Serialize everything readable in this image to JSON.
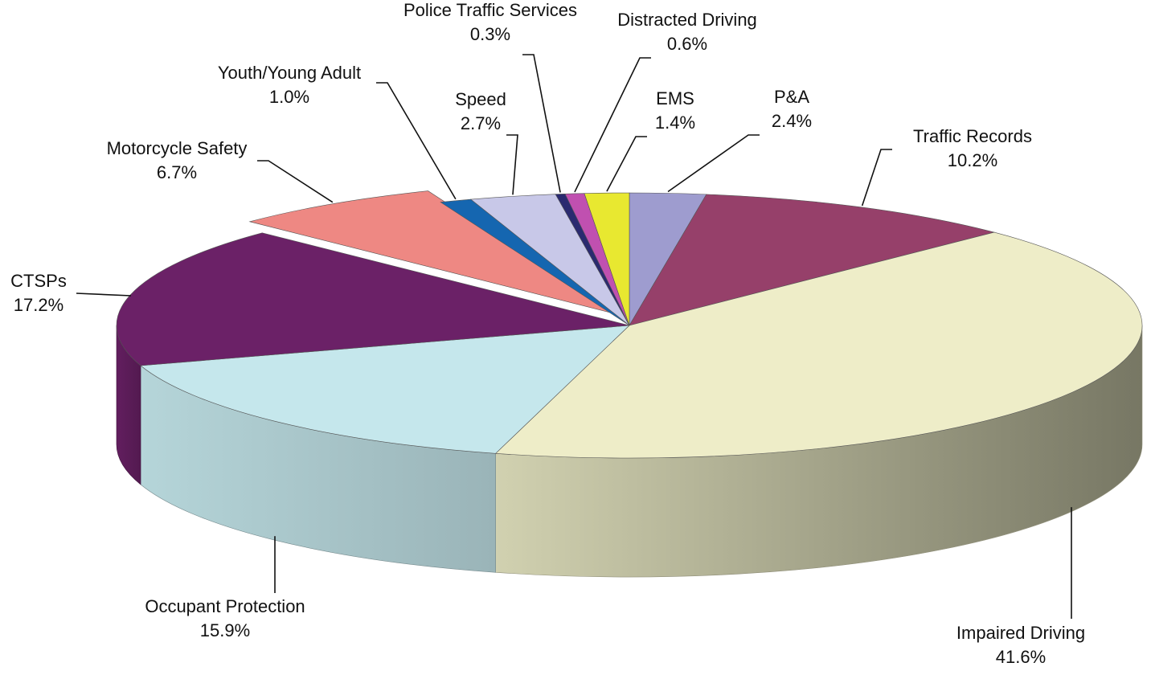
{
  "chart_data": {
    "type": "pie",
    "categories": [
      "P&A",
      "Traffic Records",
      "Impaired Driving",
      "Occupant Protection",
      "CTSPs",
      "Motorcycle Safety",
      "Youth/Young Adult",
      "Speed",
      "Police Traffic Services",
      "Distracted Driving",
      "EMS"
    ],
    "values": [
      2.4,
      10.2,
      41.6,
      15.9,
      17.2,
      6.7,
      1.0,
      2.7,
      0.3,
      0.6,
      1.4
    ],
    "value_labels": [
      "2.4%",
      "10.2%",
      "41.6%",
      "15.9%",
      "17.2%",
      "6.7%",
      "1.0%",
      "2.7%",
      "0.3%",
      "0.6%",
      "1.4%"
    ],
    "colors": [
      "#9e9ccf",
      "#96406a",
      "#eeedc8",
      "#c5e7ec",
      "#6b2167",
      "#ee8883",
      "#1566b0",
      "#c8c8e8",
      "#2a2a70",
      "#c050b0",
      "#e8e830"
    ]
  }
}
